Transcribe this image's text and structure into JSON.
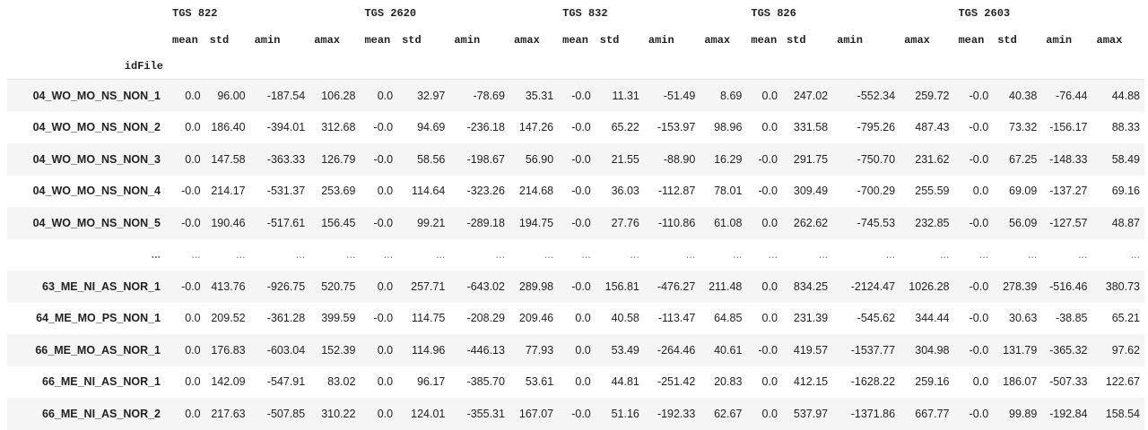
{
  "table": {
    "groups": [
      "TGS 822",
      "TGS 2620",
      "TGS 832",
      "TGS 826",
      "TGS 2603"
    ],
    "stats": [
      "mean",
      "std",
      "amin",
      "amax"
    ],
    "index_name": "idFile",
    "rows": [
      {
        "name": "04_WO_MO_NS_NON_1",
        "values": [
          "0.0",
          "96.00",
          "-187.54",
          "106.28",
          "0.0",
          "32.97",
          "-78.69",
          "35.31",
          "-0.0",
          "11.31",
          "-51.49",
          "8.69",
          "0.0",
          "247.02",
          "-552.34",
          "259.72",
          "-0.0",
          "40.38",
          "-76.44",
          "44.88"
        ]
      },
      {
        "name": "04_WO_MO_NS_NON_2",
        "values": [
          "0.0",
          "186.40",
          "-394.01",
          "312.68",
          "-0.0",
          "94.69",
          "-236.18",
          "147.26",
          "-0.0",
          "65.22",
          "-153.97",
          "98.96",
          "0.0",
          "331.58",
          "-795.26",
          "487.43",
          "-0.0",
          "73.32",
          "-156.17",
          "88.33"
        ]
      },
      {
        "name": "04_WO_MO_NS_NON_3",
        "values": [
          "0.0",
          "147.58",
          "-363.33",
          "126.79",
          "-0.0",
          "58.56",
          "-198.67",
          "56.90",
          "-0.0",
          "21.55",
          "-88.90",
          "16.29",
          "-0.0",
          "291.75",
          "-750.70",
          "231.62",
          "-0.0",
          "67.25",
          "-148.33",
          "58.49"
        ]
      },
      {
        "name": "04_WO_MO_NS_NON_4",
        "values": [
          "-0.0",
          "214.17",
          "-531.37",
          "253.69",
          "0.0",
          "114.64",
          "-323.26",
          "214.68",
          "-0.0",
          "36.03",
          "-112.87",
          "78.01",
          "-0.0",
          "309.49",
          "-700.29",
          "255.59",
          "0.0",
          "69.09",
          "-137.27",
          "69.16"
        ]
      },
      {
        "name": "04_WO_MO_NS_NON_5",
        "values": [
          "-0.0",
          "190.46",
          "-517.61",
          "156.45",
          "-0.0",
          "99.21",
          "-289.18",
          "194.75",
          "-0.0",
          "27.76",
          "-110.86",
          "61.08",
          "0.0",
          "262.62",
          "-745.53",
          "232.85",
          "-0.0",
          "56.09",
          "-127.57",
          "48.87"
        ]
      },
      {
        "name": "...",
        "values": [
          "...",
          "...",
          "...",
          "...",
          "...",
          "...",
          "...",
          "...",
          "...",
          "...",
          "...",
          "...",
          "...",
          "...",
          "...",
          "...",
          "...",
          "...",
          "...",
          "..."
        ],
        "ellipsis": true
      },
      {
        "name": "63_ME_NI_AS_NOR_1",
        "values": [
          "-0.0",
          "413.76",
          "-926.75",
          "520.75",
          "0.0",
          "257.71",
          "-643.02",
          "289.98",
          "-0.0",
          "156.81",
          "-476.27",
          "211.48",
          "0.0",
          "834.25",
          "-2124.47",
          "1026.28",
          "-0.0",
          "278.39",
          "-516.46",
          "380.73"
        ]
      },
      {
        "name": "64_ME_MO_PS_NON_1",
        "values": [
          "0.0",
          "209.52",
          "-361.28",
          "399.59",
          "-0.0",
          "114.75",
          "-208.29",
          "209.46",
          "0.0",
          "40.58",
          "-113.47",
          "64.85",
          "0.0",
          "231.39",
          "-545.62",
          "344.44",
          "-0.0",
          "30.63",
          "-38.85",
          "65.21"
        ]
      },
      {
        "name": "66_ME_MO_AS_NOR_1",
        "values": [
          "0.0",
          "176.83",
          "-603.04",
          "152.39",
          "0.0",
          "114.96",
          "-446.13",
          "77.93",
          "0.0",
          "53.49",
          "-264.46",
          "40.61",
          "-0.0",
          "419.57",
          "-1537.77",
          "304.98",
          "-0.0",
          "131.79",
          "-365.32",
          "97.62"
        ]
      },
      {
        "name": "66_ME_NI_AS_NOR_1",
        "values": [
          "0.0",
          "142.09",
          "-547.91",
          "83.02",
          "0.0",
          "96.17",
          "-385.70",
          "53.61",
          "0.0",
          "44.81",
          "-251.42",
          "20.83",
          "0.0",
          "412.15",
          "-1628.22",
          "259.16",
          "0.0",
          "186.07",
          "-507.33",
          "122.67"
        ]
      },
      {
        "name": "66_ME_NI_AS_NOR_2",
        "values": [
          "0.0",
          "217.63",
          "-507.85",
          "310.22",
          "0.0",
          "124.01",
          "-355.31",
          "167.07",
          "-0.0",
          "51.16",
          "-192.33",
          "62.67",
          "0.0",
          "537.97",
          "-1371.86",
          "667.77",
          "-0.0",
          "99.89",
          "-192.84",
          "158.54"
        ]
      }
    ]
  }
}
